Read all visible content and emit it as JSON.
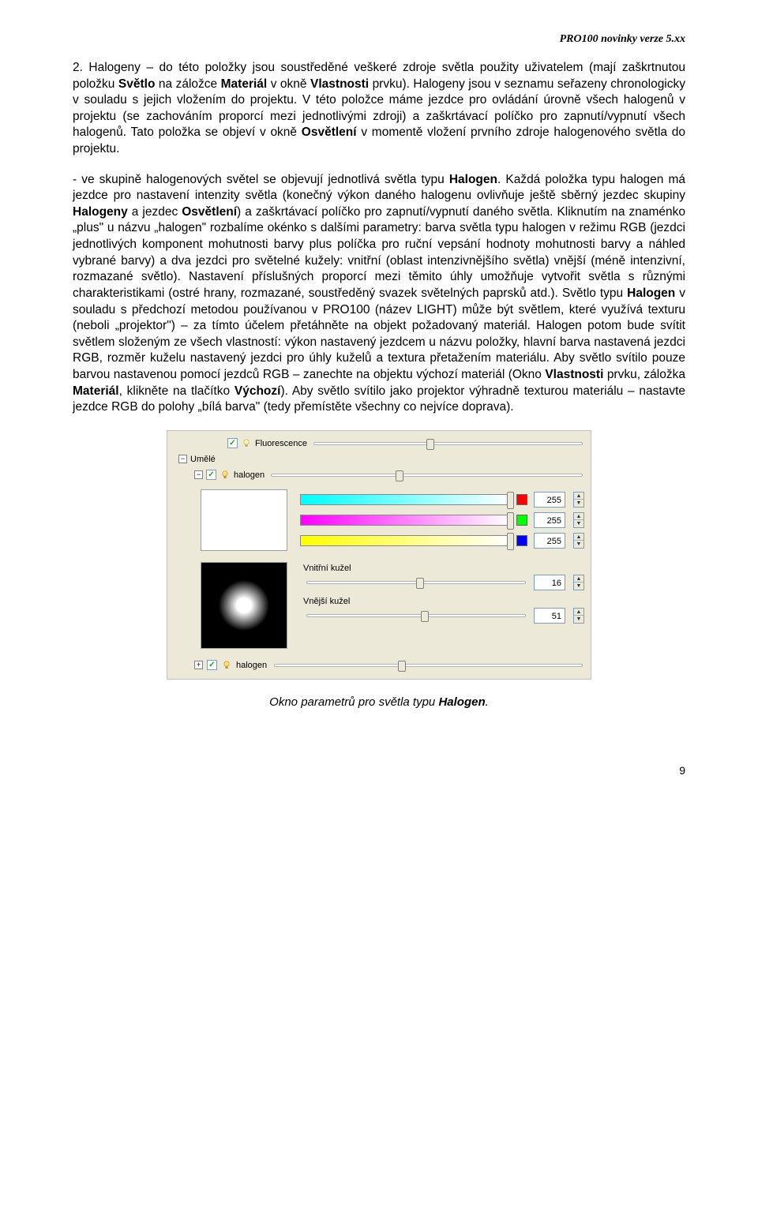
{
  "header": {
    "doc_title": "PRO100  novinky verze 5.xx"
  },
  "para1": "2. Halogeny – do této položky jsou soustředěné veškeré zdroje světla použity uživatelem (mají zaškrtnutou položku <b>Světlo</b> na záložce <b>Materiál</b> v okně <b>Vlastnosti</b> prvku). Halogeny jsou v seznamu seřazeny chronologicky v souladu s jejich vložením do projektu. V této položce máme jezdce pro ovládání úrovně všech halogenů v projektu (se zachováním proporcí mezi jednotlivými zdroji) a zaškrtávací políčko pro zapnutí/vypnutí všech halogenů. Tato položka se objeví v okně <b>Osvětlení</b> v momentě vložení prvního zdroje halogenového světla do projektu.",
  "para2": "- ve skupině halogenových světel se objevují jednotlivá světla typu <b>Halogen</b>. Každá položka typu halogen má jezdce pro nastavení intenzity světla (konečný výkon daného halogenu ovlivňuje ještě sběrný jezdec skupiny <b>Halogeny</b> a jezdec <b>Osvětlení</b>) a zaškrtávací políčko pro zapnutí/vypnutí daného světla. Kliknutím na znaménko „plus\" u názvu „halogen\" rozbalíme okénko s dalšími parametry: barva světla typu halogen v režimu RGB (jezdci jednotlivých komponent mohutnosti barvy plus políčka pro ruční vepsání hodnoty mohutnosti barvy a náhled vybrané barvy) a dva jezdci pro světelné kužely: vnitřní (oblast intenzivnějšího světla) vnější (méně intenzivní, rozmazané světlo). Nastavení příslušných proporcí mezi těmito úhly umožňuje vytvořit světla s různými charakteristikami (ostré hrany, rozmazané, soustředěný svazek světelných paprsků atd.). Světlo typu <b>Halogen</b> v souladu s předchozí metodou používanou v PRO100 (název LIGHT) může být světlem, které využívá texturu (neboli „projektor\") – za tímto účelem přetáhněte na objekt požadovaný materiál. Halogen potom bude svítit světlem složeným ze všech vlastností: výkon nastavený jezdcem u názvu položky, hlavní barva nastavená jezdci RGB, rozměr kuželu nastavený jezdci pro úhly kuželů a textura přetažením materiálu. Aby světlo svítilo pouze barvou nastavenou pomocí jezdců RGB – zanechte na objektu výchozí materiál (Okno <b>Vlastnosti</b> prvku, záložka <b>Materiál</b>, klikněte na tlačítko <b>Výchozí</b>). Aby světlo svítilo jako projektor výhradně texturou materiálu – nastavte jezdce RGB do polohy „bílá barva\" (tedy přemístěte všechny co nejvíce doprava).",
  "ui": {
    "fluor": {
      "label": "Fluorescence",
      "checked": true,
      "slider_pos": 0.42
    },
    "umele": {
      "label": "Umělé",
      "toggle": "−"
    },
    "halogen_group": {
      "label": "halogen",
      "toggle": "−",
      "checked": true,
      "slider_pos": 0.4
    },
    "rgb": {
      "preview_color": "#ffffff",
      "channels": [
        {
          "grad_from": "#00ffff",
          "grad_to": "#ffffff",
          "swatch": "#ff0000",
          "value": "255",
          "thumb": 0.98
        },
        {
          "grad_from": "#ff00ff",
          "grad_to": "#ffffff",
          "swatch": "#00ff00",
          "value": "255",
          "thumb": 0.98
        },
        {
          "grad_from": "#ffff00",
          "grad_to": "#ffffff",
          "swatch": "#0000ff",
          "value": "255",
          "thumb": 0.98
        }
      ]
    },
    "cones": {
      "inner_label": "Vnitřní kužel",
      "inner_value": "16",
      "inner_thumb": 0.5,
      "outer_label": "Vnější kužel",
      "outer_value": "51",
      "outer_thumb": 0.52
    },
    "halogen2": {
      "label": "halogen",
      "toggle": "+",
      "checked": true,
      "slider_pos": 0.4
    }
  },
  "caption": "Okno parametrů pro světla typu <b>Halogen</b>.",
  "page_number": "9"
}
